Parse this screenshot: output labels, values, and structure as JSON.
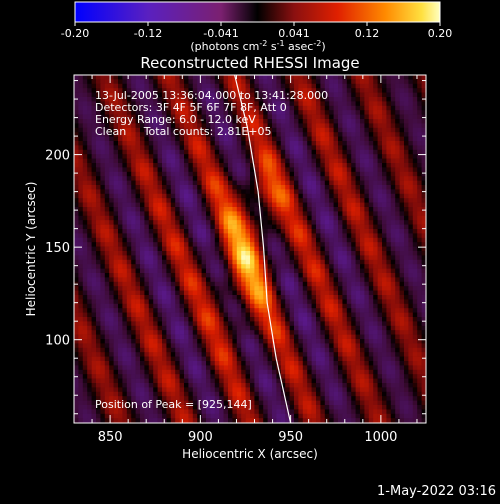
{
  "colorbar": {
    "ticks": [
      "-0.20",
      "-0.12",
      "-0.041",
      "0.041",
      "0.12",
      "0.20"
    ],
    "units_prefix": "(photons cm",
    "units_exp1": "-2",
    "units_mid": " s",
    "units_exp2": "-1",
    "units_mid2": " asec",
    "units_exp3": "-2",
    "units_suffix": ")"
  },
  "chart_data": {
    "type": "heatmap",
    "title": "Reconstructed RHESSI Image",
    "xlabel": "Heliocentric X (arcsec)",
    "ylabel": "Heliocentric Y (arcsec)",
    "xlim": [
      830,
      1025
    ],
    "ylim": [
      55,
      243
    ],
    "xticks": [
      850,
      900,
      950,
      1000
    ],
    "yticks": [
      100,
      150,
      200
    ],
    "xtick_labels": [
      "850",
      "900",
      "950",
      "1000"
    ],
    "ytick_labels": [
      "100",
      "150",
      "200"
    ],
    "colorscale_range": [
      -0.2,
      0.2
    ],
    "peak": {
      "x": 925,
      "y": 144
    },
    "annotations": [
      "13-Jul-2005 13:36:04.000 to 13:41:28.000",
      "Detectors: 3F 4F 5F 6F 7F 8F, Att 0",
      "Energy Range: 6.0 - 12.0 keV",
      "Clean     Total counts: 2.81E+05"
    ],
    "peak_label": "Position of Peak = [925,144]",
    "limb_curve": [
      [
        919,
        243
      ],
      [
        926,
        215
      ],
      [
        932,
        180
      ],
      [
        935,
        150
      ],
      [
        937,
        120
      ],
      [
        942,
        90
      ],
      [
        950,
        55
      ]
    ]
  },
  "footer": {
    "date": "1-May-2022 03:16"
  }
}
